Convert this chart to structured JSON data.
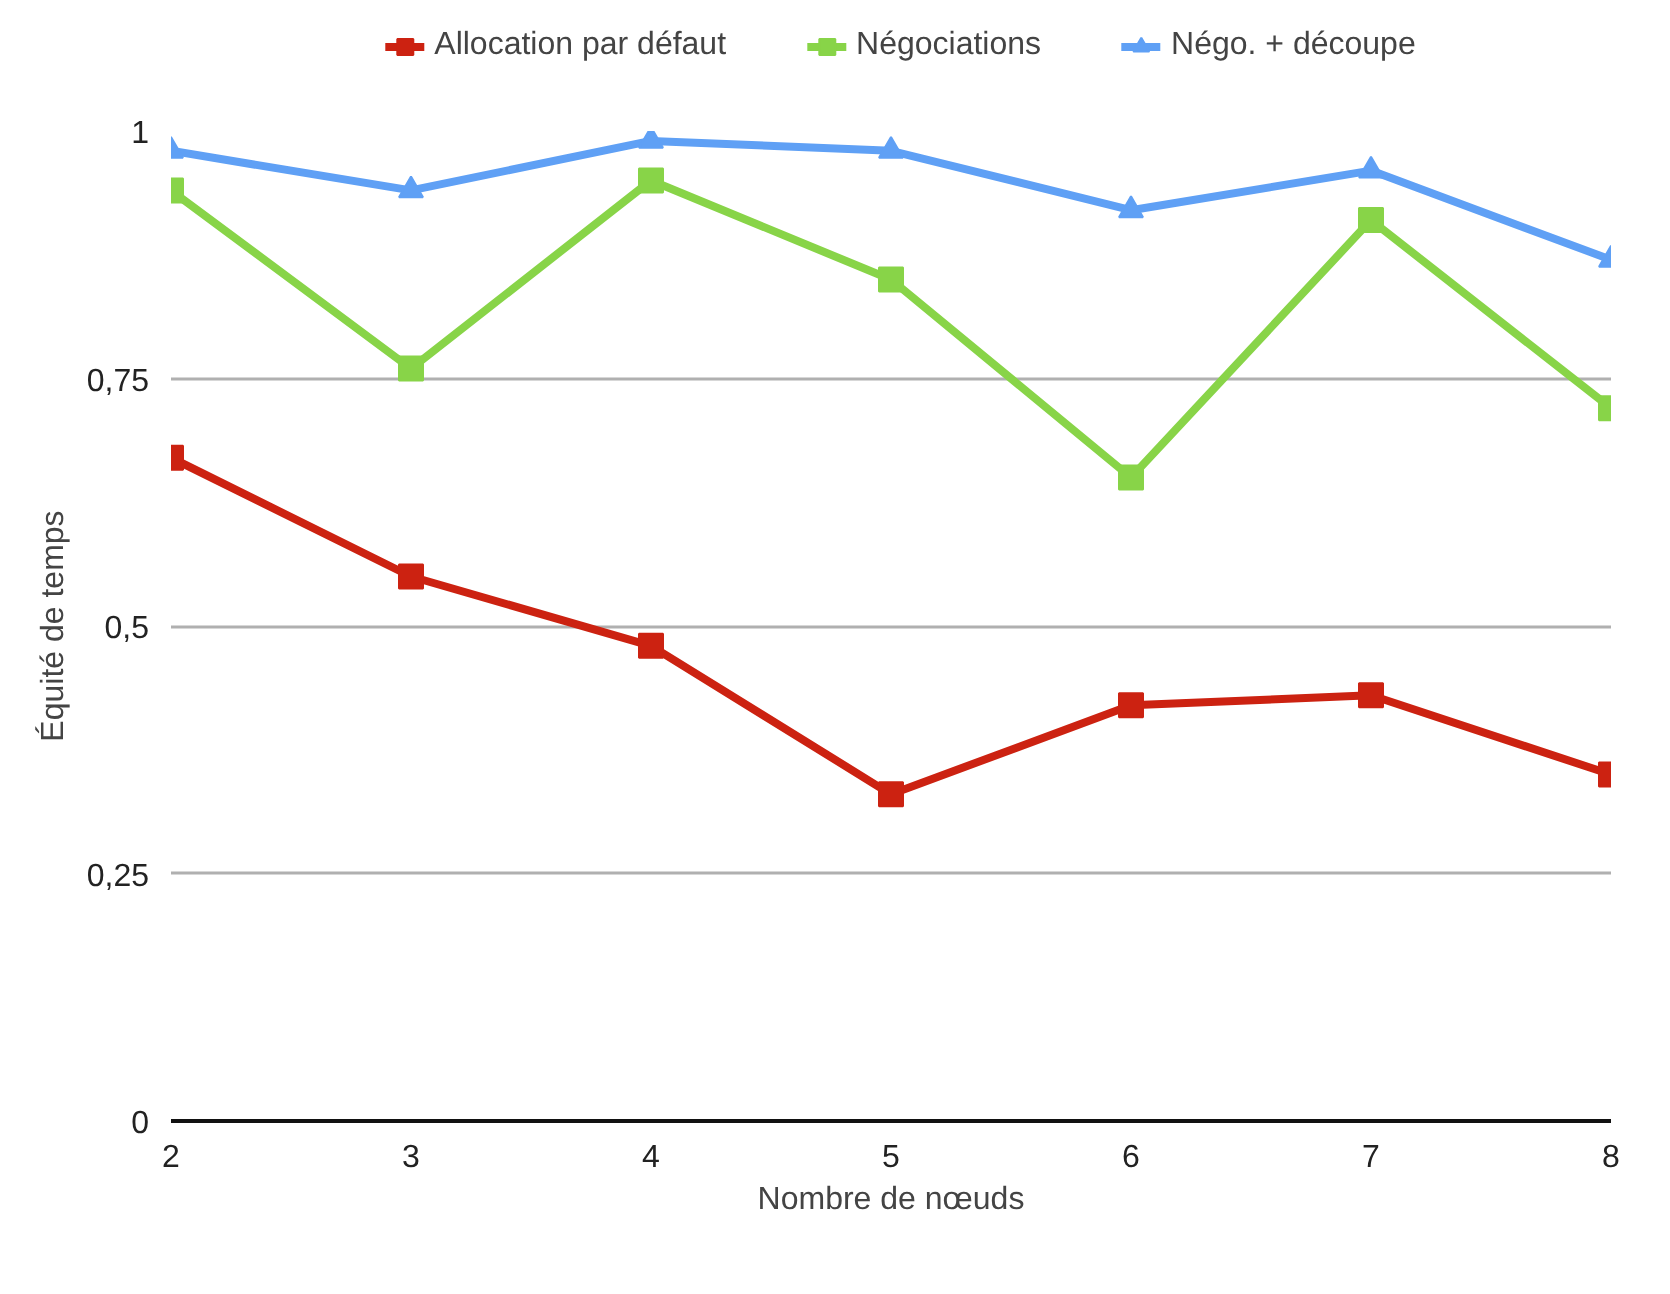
{
  "chart_data": {
    "type": "line",
    "xlabel": "Nombre de nœuds",
    "ylabel": "Équité de temps",
    "x": [
      2,
      3,
      4,
      5,
      6,
      7,
      8
    ],
    "series": [
      {
        "name": "Allocation par défaut",
        "color": "#cc2211",
        "marker": "square",
        "values": [
          0.67,
          0.55,
          0.48,
          0.33,
          0.42,
          0.43,
          0.35
        ]
      },
      {
        "name": "Négociations",
        "color": "#88d448",
        "marker": "square",
        "values": [
          0.94,
          0.76,
          0.95,
          0.85,
          0.65,
          0.91,
          0.72
        ]
      },
      {
        "name": "Négo. + découpe",
        "color": "#5fa0f5",
        "marker": "triangle",
        "values": [
          0.98,
          0.94,
          0.99,
          0.98,
          0.92,
          0.96,
          0.87
        ]
      }
    ],
    "xlim": [
      2,
      8
    ],
    "xticks": [
      2,
      3,
      4,
      5,
      6,
      7,
      8
    ],
    "ylim": [
      0,
      1
    ],
    "yticks": [
      0,
      {
        "value": 0.25,
        "label": "0,25"
      },
      {
        "value": 0.5,
        "label": "0,5"
      },
      {
        "value": 0.75,
        "label": "0,75"
      },
      1
    ],
    "grid": "y",
    "legend": "top",
    "line_style": "solid"
  }
}
